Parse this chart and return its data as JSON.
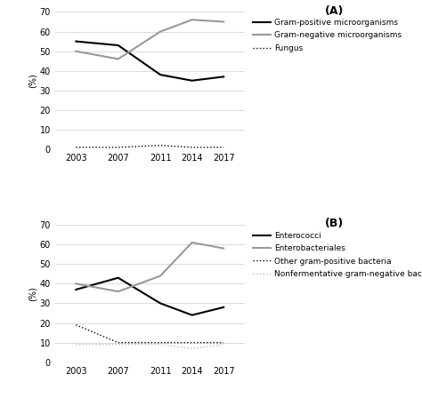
{
  "years": [
    2003,
    2007,
    2011,
    2014,
    2017
  ],
  "panel_A": {
    "gram_positive": [
      55,
      53,
      38,
      35,
      37
    ],
    "gram_negative": [
      50,
      46,
      60,
      66,
      65
    ],
    "fungus": [
      1,
      1,
      2,
      1,
      1
    ],
    "ylim": [
      0,
      70
    ],
    "yticks": [
      0,
      10,
      20,
      30,
      40,
      50,
      60,
      70
    ],
    "ylabel": "(%)",
    "label": "(A)"
  },
  "panel_B": {
    "enterococci": [
      37,
      43,
      30,
      24,
      28
    ],
    "enterobacteriales": [
      40,
      36,
      44,
      61,
      58
    ],
    "other_gram_positive": [
      19,
      10,
      10,
      10,
      10
    ],
    "nonfermentative": [
      9,
      9,
      9,
      7,
      9
    ],
    "ylim": [
      0,
      70
    ],
    "yticks": [
      0,
      10,
      20,
      30,
      40,
      50,
      60,
      70
    ],
    "ylabel": "(%)",
    "label": "(B)"
  },
  "legend_A": {
    "gram_positive": "Gram-positive microorganisms",
    "gram_negative": "Gram-negative microorganisms",
    "fungus": "Fungus"
  },
  "legend_B": {
    "enterococci": "Enterococci",
    "enterobacteriales": "Enterobacteriales",
    "other_gram_positive": "Other gram-positive bacteria",
    "nonfermentative": "Nonfermentative gram-negative bacilli"
  },
  "line_color_black": "#000000",
  "line_color_gray": "#999999",
  "line_color_lightgray": "#bbbbbb",
  "background_color": "#ffffff",
  "grid_color": "#cccccc",
  "figsize": [
    4.74,
    4.48
  ],
  "dpi": 100
}
